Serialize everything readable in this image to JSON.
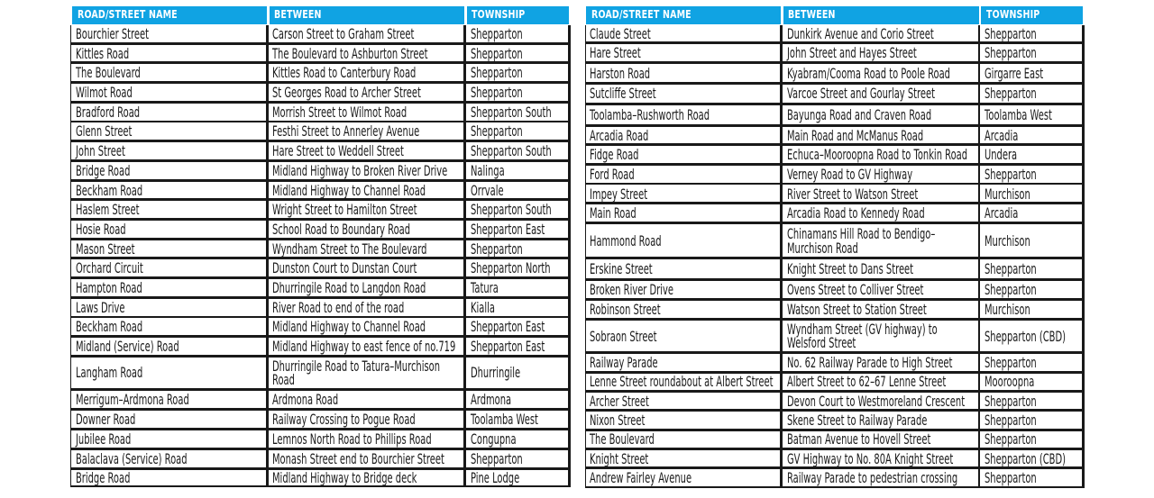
{
  "style": {
    "header_bg": "#10a3e3",
    "header_text_color": "#ffffff",
    "grid_line_color": "#191919",
    "body_text_color": "#191919",
    "page_bg": "#ffffff"
  },
  "columns": [
    "ROAD/STREET NAME",
    "BETWEEN",
    "TOWNSHIP"
  ],
  "tables": [
    {
      "id": "left",
      "rows": [
        [
          "Bourchier Street",
          "Carson Street to Graham Street",
          "Shepparton"
        ],
        [
          "Kittles Road",
          "The Boulevard to Ashburton Street",
          "Shepparton"
        ],
        [
          "The Boulevard",
          "Kittles Road to Canterbury Road",
          "Shepparton"
        ],
        [
          "Wilmot Road",
          "St Georges Road to Archer Street",
          "Shepparton"
        ],
        [
          "Bradford Road",
          "Morrish Street to Wilmot Road",
          "Shepparton South"
        ],
        [
          "Glenn Street",
          "Festhi Street to Annerley Avenue",
          "Shepparton"
        ],
        [
          "John Street",
          "Hare Street to Weddell Street",
          "Shepparton South"
        ],
        [
          "Bridge Road",
          "Midland Highway to Broken River Drive",
          "Nalinga"
        ],
        [
          "Beckham Road",
          "Midland Highway to Channel Road",
          "Orrvale"
        ],
        [
          "Haslem Street",
          "Wright Street to Hamilton Street",
          "Shepparton South"
        ],
        [
          "Hosie Road",
          "School Road to Boundary Road",
          "Shepparton East"
        ],
        [
          "Mason Street",
          "Wyndham Street to The Boulevard",
          "Shepparton"
        ],
        [
          "Orchard Circuit",
          "Dunston Court to Dunstan Court",
          "Shepparton North"
        ],
        [
          "Hampton Road",
          "Dhurringile Road to Langdon Road",
          "Tatura"
        ],
        [
          "Laws Drive",
          "River Road to end of the road",
          "Kialla"
        ],
        [
          "Beckham Road",
          "Midland Highway to Channel Road",
          "Shepparton East"
        ],
        [
          "Midland (Service) Road",
          "Midland Highway to east fence of no.719",
          "Shepparton East"
        ],
        [
          "Langham Road",
          "Dhurringile Road to Tatura–Murchison\nRoad",
          "Dhurringile"
        ],
        [
          "Merrigum–Ardmona Road",
          "Ardmona Road",
          "Ardmona"
        ],
        [
          "Downer Road",
          "Railway Crossing to Pogue Road",
          "Toolamba West"
        ],
        [
          "Jubilee Road",
          "Lemnos North Road to Phillips Road",
          "Congupna"
        ],
        [
          "Balaclava (Service) Road",
          "Monash Street end to Bourchier Street",
          "Shepparton"
        ],
        [
          "Bridge Road",
          "Midland Highway to Bridge deck",
          "Pine Lodge"
        ]
      ]
    },
    {
      "id": "right",
      "rows": [
        [
          "Claude Street",
          "Dunkirk Avenue and Corio Street",
          "Shepparton"
        ],
        [
          "Hare Street",
          "John Street and Hayes Street",
          "Shepparton"
        ],
        [
          "Harston Road",
          "Kyabram/Cooma Road to Poole Road",
          "Girgarre East"
        ],
        [
          "Sutcliffe Street",
          "Varcoe Street and Gourlay Street",
          "Shepparton"
        ],
        [
          "Toolamba–Rushworth Road",
          "Bayunga Road and Craven Road",
          "Toolamba West"
        ],
        [
          "Arcadia Road",
          "Main Road and McManus Road",
          "Arcadia"
        ],
        [
          "Fidge Road",
          "Echuca–Mooroopna Road to Tonkin Road",
          "Undera"
        ],
        [
          "Ford Road",
          "Verney Road to GV Highway",
          "Shepparton"
        ],
        [
          "Impey Street",
          "River Street to Watson Street",
          "Murchison"
        ],
        [
          "Main Road",
          "Arcadia Road to Kennedy Road",
          "Arcadia"
        ],
        [
          "Hammond Road",
          "Chinamans Hill Road to Bendigo–\nMurchison Road",
          "Murchison"
        ],
        [
          "Erskine Street",
          "Knight Street to Dans Street",
          "Shepparton"
        ],
        [
          "Broken River Drive",
          "Ovens Street to Colliver Street",
          "Shepparton"
        ],
        [
          "Robinson Street",
          "Watson Street to Station Street",
          "Murchison"
        ],
        [
          "Sobraon Street",
          "Wyndham Street (GV highway) to\nWelsford Street",
          "Shepparton (CBD)"
        ],
        [
          "Railway Parade",
          "No. 62 Railway Parade to High Street",
          "Shepparton"
        ],
        [
          "Lenne Street roundabout at Albert Street",
          "Albert Street to 62–67 Lenne Street",
          "Mooroopna"
        ],
        [
          "Archer Street",
          "Devon Court to Westmoreland Crescent",
          "Shepparton"
        ],
        [
          "Nixon Street",
          "Skene Street to Railway Parade",
          "Shepparton"
        ],
        [
          "The Boulevard",
          "Batman Avenue to Hovell Street",
          "Shepparton"
        ],
        [
          "Knight Street",
          "GV Highway to No. 80A Knight Street",
          "Shepparton (CBD)"
        ],
        [
          "Andrew Fairley Avenue",
          "Railway Parade to pedestrian crossing",
          "Shepparton"
        ]
      ]
    }
  ]
}
